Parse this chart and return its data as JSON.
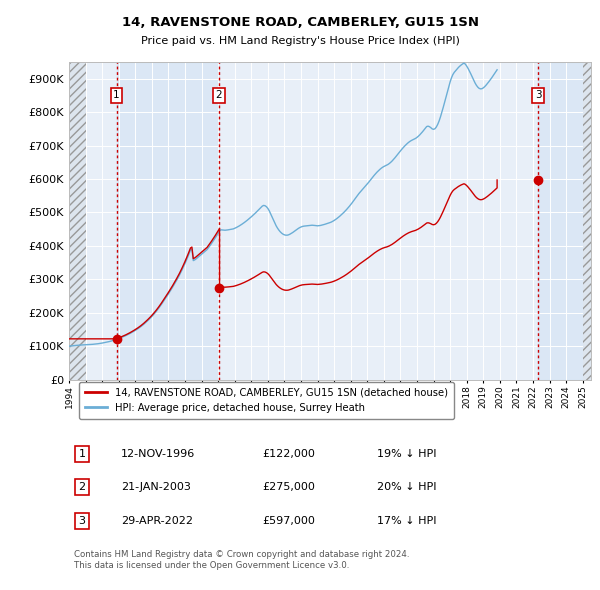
{
  "title": "14, RAVENSTONE ROAD, CAMBERLEY, GU15 1SN",
  "subtitle": "Price paid vs. HM Land Registry's House Price Index (HPI)",
  "ylabel_ticks": [
    "£0",
    "£100K",
    "£200K",
    "£300K",
    "£400K",
    "£500K",
    "£600K",
    "£700K",
    "£800K",
    "£900K"
  ],
  "ytick_values": [
    0,
    100000,
    200000,
    300000,
    400000,
    500000,
    600000,
    700000,
    800000,
    900000
  ],
  "ylim": [
    0,
    950000
  ],
  "xlim_start": 1994.0,
  "xlim_end": 2025.5,
  "hpi_color": "#6baed6",
  "price_color": "#cc0000",
  "bg_shade_color": "#dce9f5",
  "hatch_color": "#c8c8c8",
  "legend_label_price": "14, RAVENSTONE ROAD, CAMBERLEY, GU15 1SN (detached house)",
  "legend_label_hpi": "HPI: Average price, detached house, Surrey Heath",
  "sales": [
    {
      "num": 1,
      "date_label": "12-NOV-1996",
      "price_label": "£122,000",
      "pct_label": "19% ↓ HPI",
      "year": 1996.87,
      "price": 122000
    },
    {
      "num": 2,
      "date_label": "21-JAN-2003",
      "price_label": "£275,000",
      "pct_label": "20% ↓ HPI",
      "year": 2003.05,
      "price": 275000
    },
    {
      "num": 3,
      "date_label": "29-APR-2022",
      "price_label": "£597,000",
      "pct_label": "17% ↓ HPI",
      "year": 2022.32,
      "price": 597000
    }
  ],
  "footer": "Contains HM Land Registry data © Crown copyright and database right 2024.\nThis data is licensed under the Open Government Licence v3.0.",
  "hpi_index": [
    100.0,
    100.5,
    101.2,
    101.8,
    102.1,
    102.4,
    102.6,
    103.0,
    103.3,
    103.7,
    103.9,
    104.1,
    104.0,
    104.2,
    104.5,
    104.8,
    105.2,
    105.6,
    106.0,
    106.4,
    106.8,
    107.4,
    108.0,
    108.7,
    109.4,
    110.2,
    111.0,
    111.9,
    112.8,
    113.7,
    114.7,
    115.9,
    117.2,
    118.6,
    120.0,
    121.5,
    123.0,
    124.6,
    126.2,
    127.9,
    129.6,
    131.5,
    133.5,
    135.6,
    137.7,
    140.0,
    142.3,
    144.8,
    147.3,
    149.9,
    152.6,
    155.5,
    158.6,
    161.8,
    165.2,
    168.8,
    172.5,
    176.4,
    180.4,
    184.6,
    188.9,
    193.5,
    198.3,
    203.3,
    208.5,
    214.0,
    219.7,
    225.6,
    231.7,
    237.9,
    244.3,
    250.4,
    256.6,
    263.0,
    269.5,
    276.3,
    283.2,
    290.3,
    297.6,
    305.0,
    312.7,
    321.0,
    329.5,
    338.4,
    347.5,
    357.0,
    366.8,
    376.9,
    387.3,
    390.0,
    356.0,
    358.0,
    361.0,
    364.5,
    368.0,
    371.5,
    375.0,
    378.5,
    382.0,
    385.5,
    389.0,
    394.5,
    400.2,
    406.0,
    412.0,
    418.2,
    424.5,
    431.0,
    437.6,
    444.4,
    448.0,
    447.5,
    447.0,
    446.8,
    447.2,
    447.8,
    448.5,
    449.2,
    450.0,
    450.8,
    452.5,
    454.5,
    456.7,
    459.0,
    461.5,
    464.2,
    467.0,
    470.0,
    473.1,
    476.4,
    479.8,
    483.3,
    486.9,
    490.6,
    494.4,
    498.3,
    502.4,
    506.5,
    510.7,
    514.9,
    519.0,
    521.0,
    520.0,
    517.0,
    512.0,
    505.0,
    496.0,
    487.0,
    478.0,
    469.0,
    460.0,
    453.0,
    447.0,
    442.0,
    438.0,
    435.0,
    433.0,
    432.0,
    432.0,
    433.0,
    435.0,
    437.5,
    440.0,
    443.0,
    446.0,
    449.0,
    452.0,
    454.5,
    456.5,
    458.0,
    459.0,
    459.5,
    460.0,
    460.5,
    461.0,
    461.5,
    461.8,
    461.5,
    461.0,
    460.5,
    460.0,
    460.5,
    461.0,
    462.0,
    463.0,
    464.2,
    465.5,
    466.8,
    468.2,
    469.7,
    471.3,
    473.5,
    476.0,
    478.8,
    481.8,
    485.0,
    488.5,
    492.2,
    496.0,
    500.0,
    504.2,
    508.7,
    513.4,
    518.3,
    523.4,
    528.7,
    534.2,
    539.9,
    545.7,
    551.3,
    556.8,
    561.5,
    566.0,
    570.5,
    575.2,
    580.0,
    585.0,
    590.2,
    595.5,
    600.8,
    606.0,
    611.0,
    615.8,
    620.3,
    624.5,
    628.3,
    631.8,
    634.8,
    637.3,
    639.3,
    641.0,
    643.5,
    646.5,
    650.0,
    654.0,
    658.5,
    663.3,
    668.3,
    673.5,
    678.8,
    684.0,
    689.0,
    693.8,
    698.3,
    702.5,
    706.3,
    709.8,
    712.8,
    715.3,
    717.3,
    719.0,
    721.5,
    724.5,
    728.0,
    732.0,
    736.5,
    741.3,
    746.3,
    751.5,
    756.8,
    758.0,
    756.5,
    753.5,
    749.8,
    748.5,
    750.3,
    755.5,
    763.3,
    773.5,
    785.8,
    799.5,
    814.3,
    829.5,
    845.0,
    860.5,
    876.0,
    890.5,
    903.0,
    912.5,
    919.0,
    924.0,
    929.0,
    933.5,
    937.5,
    941.0,
    944.0,
    946.5,
    943.5,
    937.5,
    930.5,
    922.5,
    914.0,
    905.0,
    895.8,
    887.5,
    880.3,
    874.8,
    871.0,
    869.5,
    870.0,
    872.5,
    876.0,
    880.5,
    885.5,
    890.8,
    896.3,
    902.0,
    908.0,
    914.0,
    920.3,
    926.5
  ]
}
